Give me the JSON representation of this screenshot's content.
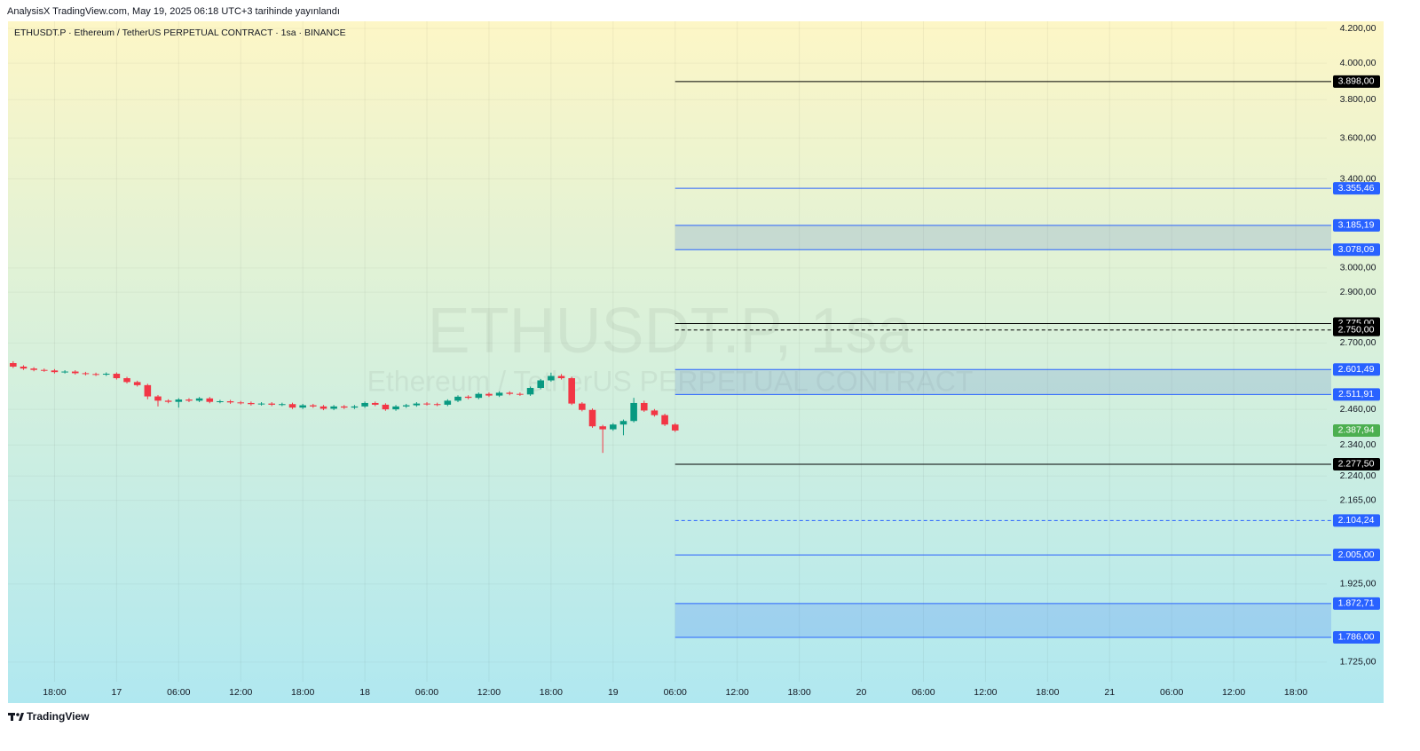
{
  "header": "AnalysisX TradingView.com, May 19, 2025 06:18 UTC+3 tarihinde yayınlandı",
  "footer": "TradingView",
  "chart_data": {
    "type": "candlestick",
    "title": "ETHUSDT.P · Ethereum / TetherUS PERPETUAL CONTRACT · 1sa · BINANCE",
    "watermark": "ETHUSDT.P, 1sa",
    "watermark_subtitle": "Ethereum / TetherUS PERPETUAL CONTRACT",
    "up_color": "#089981",
    "down_color": "#f23645",
    "log_scale": true,
    "grid": true,
    "xlim": [
      -4.5,
      123
    ],
    "ylim": [
      1678,
      4242
    ],
    "xticks": [
      {
        "value": 0,
        "label": "18:00"
      },
      {
        "value": 6,
        "label": "17"
      },
      {
        "value": 12,
        "label": "06:00"
      },
      {
        "value": 18,
        "label": "12:00"
      },
      {
        "value": 24,
        "label": "18:00"
      },
      {
        "value": 30,
        "label": "18"
      },
      {
        "value": 36,
        "label": "06:00"
      },
      {
        "value": 42,
        "label": "12:00"
      },
      {
        "value": 48,
        "label": "18:00"
      },
      {
        "value": 54,
        "label": "19"
      },
      {
        "value": 60,
        "label": "06:00"
      },
      {
        "value": 66,
        "label": "12:00"
      },
      {
        "value": 72,
        "label": "18:00"
      },
      {
        "value": 78,
        "label": "20"
      },
      {
        "value": 84,
        "label": "06:00"
      },
      {
        "value": 90,
        "label": "12:00"
      },
      {
        "value": 96,
        "label": "18:00"
      },
      {
        "value": 102,
        "label": "21"
      },
      {
        "value": 108,
        "label": "06:00"
      },
      {
        "value": 114,
        "label": "12:00"
      },
      {
        "value": 120,
        "label": "18:00"
      }
    ],
    "yticks": [
      {
        "value": 4200,
        "label": "4.200,00"
      },
      {
        "value": 4000,
        "label": "4.000,00"
      },
      {
        "value": 3800,
        "label": "3.800,00"
      },
      {
        "value": 3600,
        "label": "3.600,00"
      },
      {
        "value": 3400,
        "label": "3.400,00"
      },
      {
        "value": 3000,
        "label": "3.000,00"
      },
      {
        "value": 2900,
        "label": "2.900,00"
      },
      {
        "value": 2700,
        "label": "2.700,00"
      },
      {
        "value": 2460,
        "label": "2.460,00"
      },
      {
        "value": 2340,
        "label": "2.340,00"
      },
      {
        "value": 2240,
        "label": "2.240,00"
      },
      {
        "value": 2165,
        "label": "2.165,00"
      },
      {
        "value": 1925,
        "label": "1.925,00"
      },
      {
        "value": 1725,
        "label": "1.725,00"
      }
    ],
    "x": [
      -4,
      -3,
      -2,
      -1,
      0,
      1,
      2,
      3,
      4,
      5,
      6,
      7,
      8,
      9,
      10,
      11,
      12,
      13,
      14,
      15,
      16,
      17,
      18,
      19,
      20,
      21,
      22,
      23,
      24,
      25,
      26,
      27,
      28,
      29,
      30,
      31,
      32,
      33,
      34,
      35,
      36,
      37,
      38,
      39,
      40,
      41,
      42,
      43,
      44,
      45,
      46,
      47,
      48,
      49,
      50,
      51,
      52,
      53,
      54,
      55,
      56,
      57,
      58,
      59,
      60
    ],
    "open": [
      2625,
      2612,
      2605,
      2600,
      2598,
      2592,
      2594,
      2588,
      2585,
      2583,
      2586,
      2570,
      2556,
      2545,
      2505,
      2490,
      2486,
      2494,
      2490,
      2498,
      2486,
      2488,
      2484,
      2482,
      2478,
      2480,
      2476,
      2478,
      2466,
      2474,
      2470,
      2462,
      2470,
      2466,
      2470,
      2482,
      2476,
      2460,
      2470,
      2474,
      2480,
      2478,
      2476,
      2490,
      2504,
      2500,
      2514,
      2508,
      2518,
      2514,
      2512,
      2535,
      2562,
      2578,
      2570,
      2480,
      2458,
      2402,
      2392,
      2408,
      2420,
      2482,
      2456,
      2440,
      2408
    ],
    "high": [
      2632,
      2617,
      2610,
      2605,
      2603,
      2599,
      2599,
      2593,
      2590,
      2591,
      2591,
      2575,
      2561,
      2550,
      2510,
      2495,
      2499,
      2499,
      2503,
      2503,
      2493,
      2493,
      2489,
      2487,
      2485,
      2485,
      2483,
      2483,
      2479,
      2479,
      2475,
      2475,
      2475,
      2475,
      2487,
      2487,
      2481,
      2475,
      2479,
      2485,
      2485,
      2483,
      2495,
      2509,
      2509,
      2519,
      2519,
      2523,
      2523,
      2519,
      2540,
      2567,
      2590,
      2585,
      2575,
      2485,
      2463,
      2407,
      2413,
      2425,
      2500,
      2490,
      2461,
      2445,
      2413
    ],
    "low": [
      2607,
      2600,
      2595,
      2593,
      2587,
      2587,
      2583,
      2580,
      2578,
      2578,
      2565,
      2551,
      2540,
      2495,
      2470,
      2481,
      2466,
      2485,
      2485,
      2481,
      2481,
      2479,
      2477,
      2473,
      2473,
      2471,
      2471,
      2461,
      2461,
      2465,
      2457,
      2457,
      2461,
      2461,
      2465,
      2471,
      2455,
      2455,
      2465,
      2469,
      2473,
      2471,
      2471,
      2485,
      2495,
      2495,
      2503,
      2503,
      2509,
      2507,
      2507,
      2530,
      2557,
      2565,
      2475,
      2453,
      2397,
      2314,
      2387,
      2372,
      2415,
      2451,
      2435,
      2403,
      2383
    ],
    "close": [
      2612,
      2605,
      2600,
      2598,
      2592,
      2594,
      2588,
      2585,
      2583,
      2586,
      2570,
      2556,
      2545,
      2505,
      2490,
      2486,
      2494,
      2490,
      2498,
      2486,
      2488,
      2484,
      2482,
      2478,
      2480,
      2476,
      2478,
      2466,
      2474,
      2470,
      2462,
      2470,
      2466,
      2470,
      2482,
      2476,
      2460,
      2470,
      2474,
      2480,
      2478,
      2476,
      2490,
      2504,
      2500,
      2514,
      2508,
      2518,
      2514,
      2512,
      2535,
      2562,
      2578,
      2570,
      2480,
      2458,
      2402,
      2392,
      2408,
      2420,
      2482,
      2456,
      2440,
      2408,
      2387.94
    ],
    "zones": [
      {
        "top": 3185.19,
        "bottom": 3078.09,
        "color": "rgba(90,130,200,0.22)"
      },
      {
        "top": 2601.49,
        "bottom": 2511.91,
        "color": "rgba(90,130,200,0.22)"
      },
      {
        "top": 1872.71,
        "bottom": 1786.0,
        "color": "rgba(41,98,255,0.18)"
      }
    ],
    "levels": [
      {
        "value": 3898,
        "label": "3.898,00",
        "color": "#000000",
        "style": "solid"
      },
      {
        "value": 3355.46,
        "label": "3.355,46",
        "color": "#2962ff",
        "style": "solid"
      },
      {
        "value": 3185.19,
        "label": "3.185,19",
        "color": "#2962ff",
        "style": "solid"
      },
      {
        "value": 3078.09,
        "label": "3.078,09",
        "color": "#2962ff",
        "style": "solid"
      },
      {
        "value": 2775,
        "label": "2.775,00",
        "color": "#000000",
        "style": "solid"
      },
      {
        "value": 2750,
        "label": "2.750,00",
        "color": "#000000",
        "style": "dashed"
      },
      {
        "value": 2601.49,
        "label": "2.601,49",
        "color": "#2962ff",
        "style": "solid"
      },
      {
        "value": 2511.91,
        "label": "2.511,91",
        "color": "#2962ff",
        "style": "solid"
      },
      {
        "value": 2277.5,
        "label": "2.277,50",
        "color": "#000000",
        "style": "solid"
      },
      {
        "value": 2104.24,
        "label": "2.104,24",
        "color": "#2962ff",
        "style": "dashed"
      },
      {
        "value": 2005.0,
        "label": "2.005,00",
        "color": "#2962ff",
        "style": "solid"
      },
      {
        "value": 1872.71,
        "label": "1.872,71",
        "color": "#2962ff",
        "style": "solid"
      },
      {
        "value": 1786.0,
        "label": "1.786,00",
        "color": "#2962ff",
        "style": "solid"
      }
    ],
    "last_price": {
      "value": 2387.94,
      "label": "2.387,94",
      "color": "#4caf50"
    }
  }
}
